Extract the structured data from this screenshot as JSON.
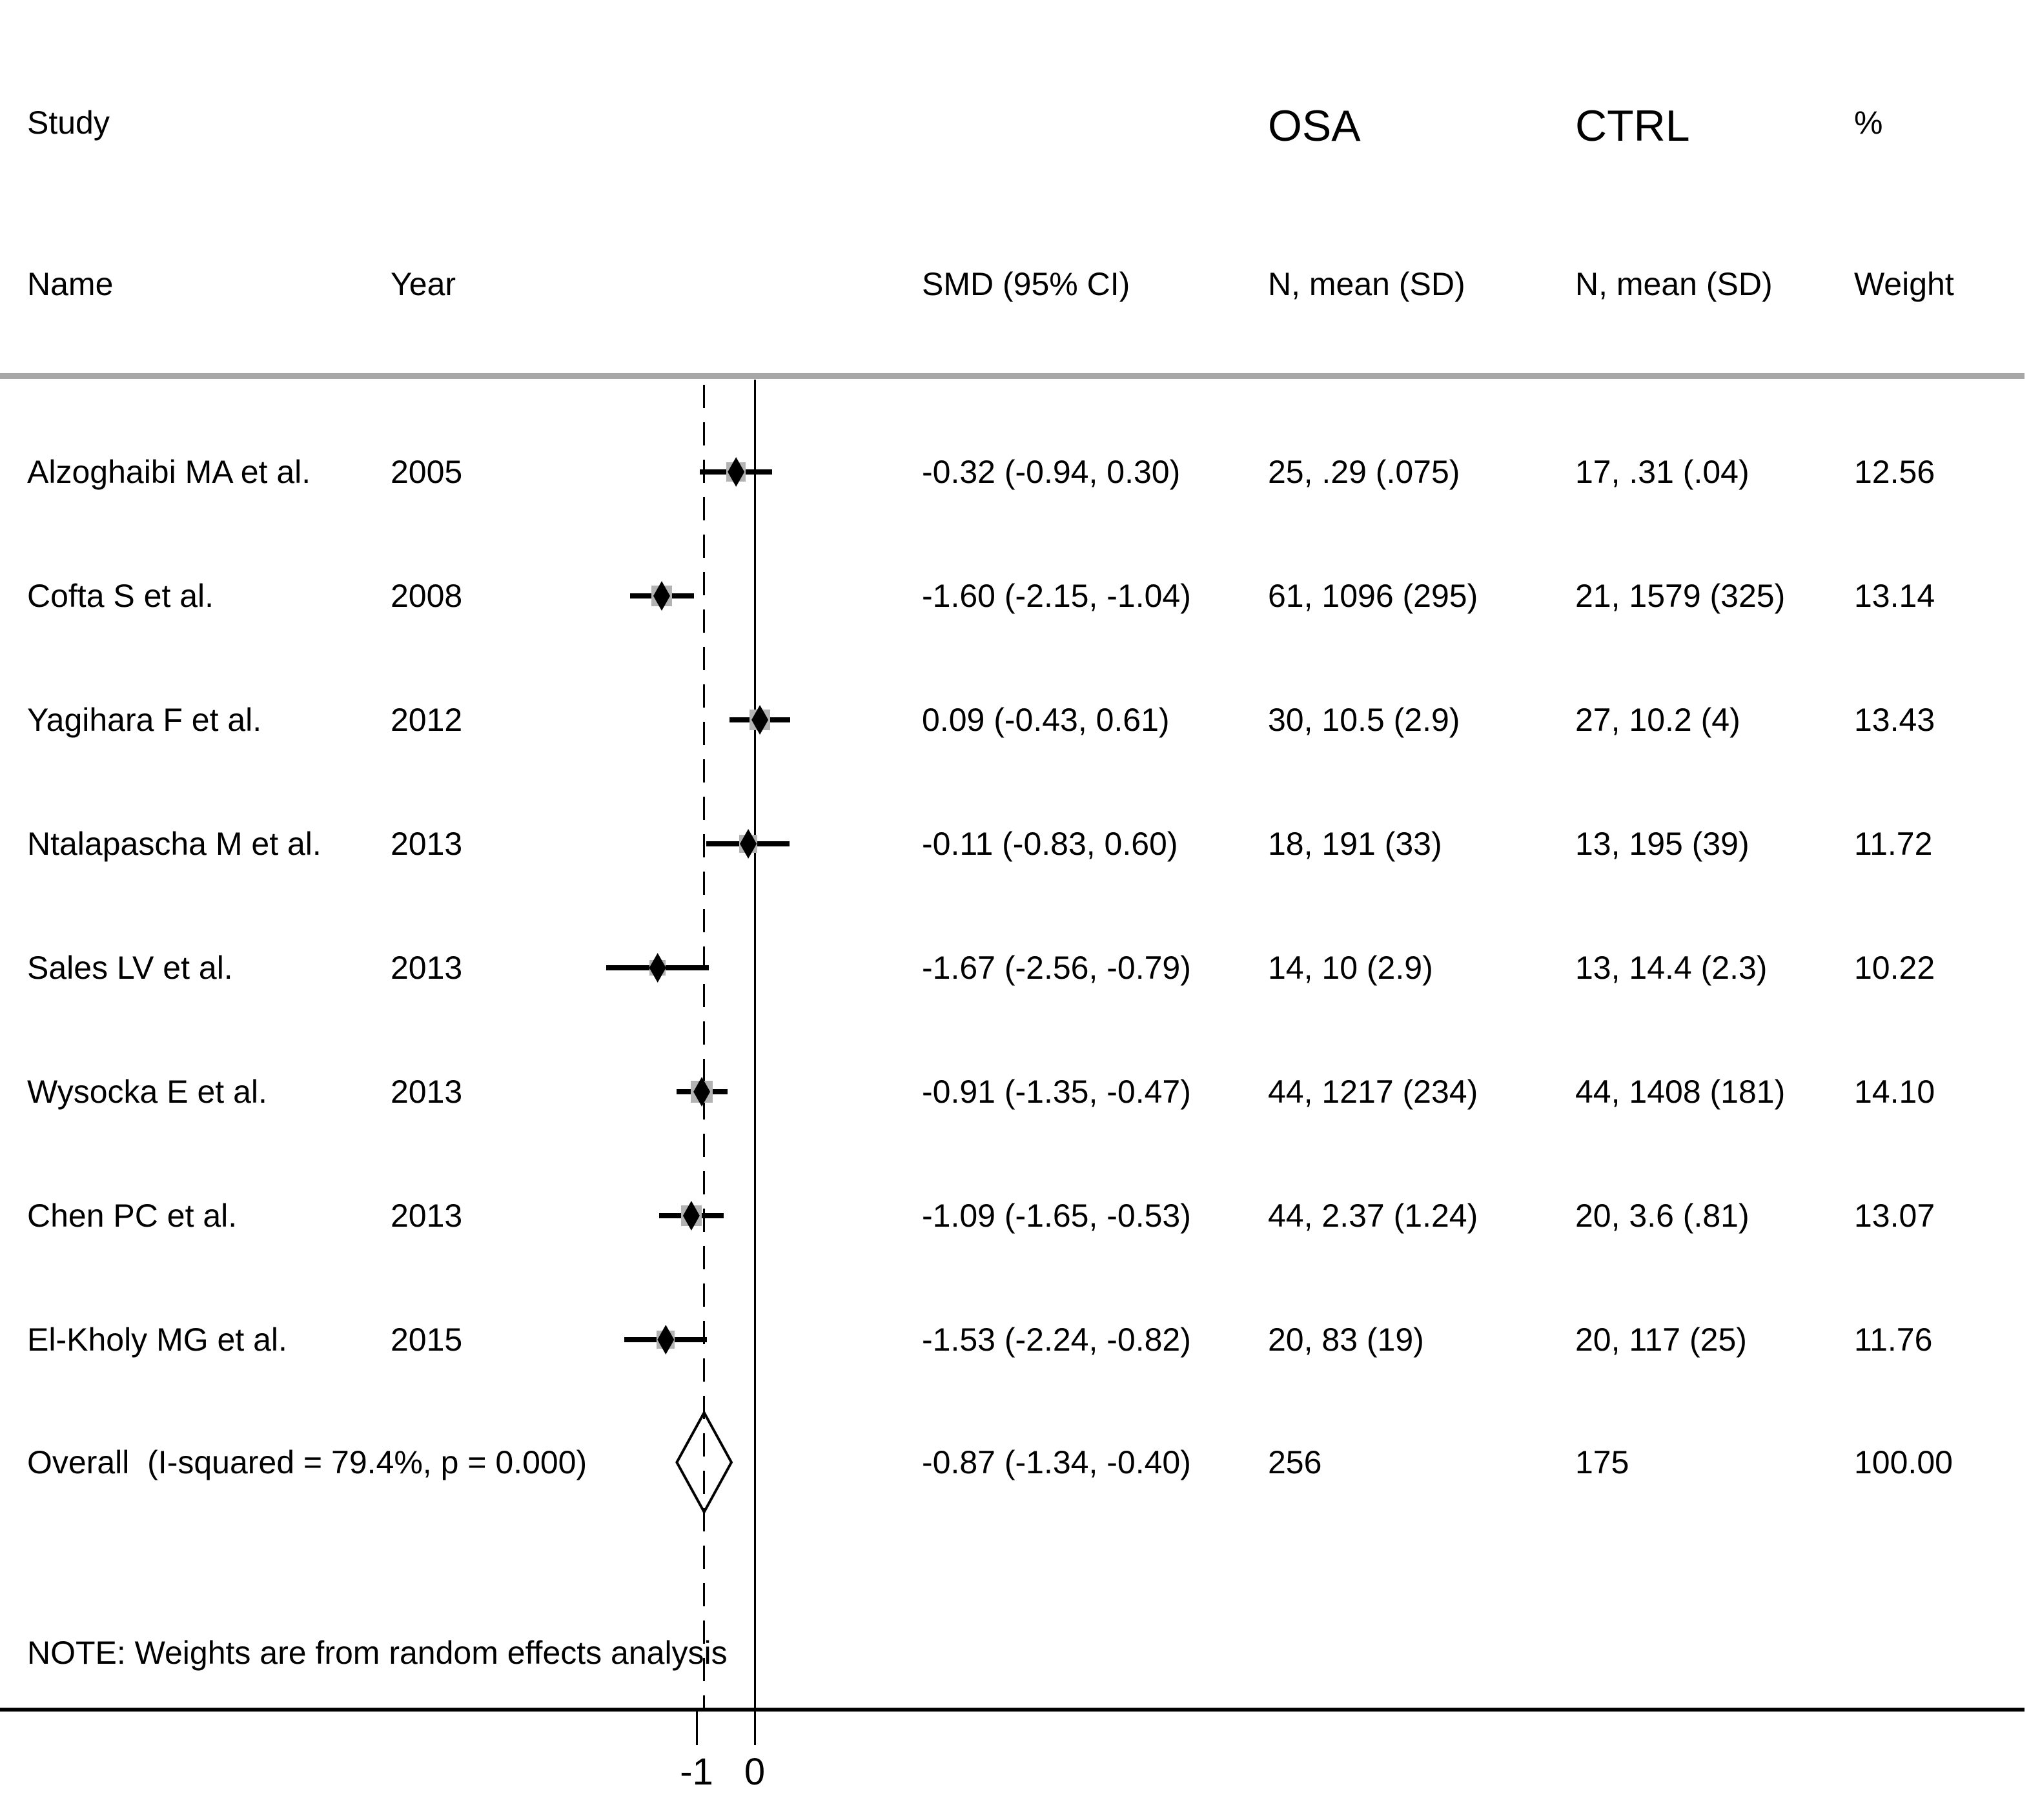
{
  "header": {
    "study_line1": "Study",
    "study_line2": "Name",
    "year": "Year",
    "smd_ci": "SMD (95% CI)",
    "osa_group": "OSA",
    "osa_sub": "N, mean (SD)",
    "ctrl_group": "CTRL",
    "ctrl_sub": "N, mean (SD)",
    "pct": "%",
    "weight": "Weight"
  },
  "chart_data": {
    "type": "forest-plot",
    "effect_measure": "SMD",
    "legend_position": "none",
    "grid": false,
    "xlim": [
      -2.7,
      0.8
    ],
    "studies": [
      {
        "name": "Alzoghaibi MA et al.",
        "year": "2005",
        "smd": -0.32,
        "ci_low": -0.94,
        "ci_high": 0.3,
        "smd_label": "-0.32 (-0.94, 0.30)",
        "osa": "25, .29 (.075)",
        "ctrl": "17, .31 (.04)",
        "weight": 12.56,
        "weight_label": "12.56"
      },
      {
        "name": "Cofta S et al.",
        "year": "2008",
        "smd": -1.6,
        "ci_low": -2.15,
        "ci_high": -1.04,
        "smd_label": "-1.60 (-2.15, -1.04)",
        "osa": "61, 1096 (295)",
        "ctrl": "21, 1579 (325)",
        "weight": 13.14,
        "weight_label": "13.14"
      },
      {
        "name": "Yagihara F et al.",
        "year": "2012",
        "smd": 0.09,
        "ci_low": -0.43,
        "ci_high": 0.61,
        "smd_label": "0.09 (-0.43, 0.61)",
        "osa": "30, 10.5 (2.9)",
        "ctrl": "27, 10.2 (4)",
        "weight": 13.43,
        "weight_label": "13.43"
      },
      {
        "name": "Ntalapascha M et al.",
        "year": "2013",
        "smd": -0.11,
        "ci_low": -0.83,
        "ci_high": 0.6,
        "smd_label": "-0.11 (-0.83, 0.60)",
        "osa": "18, 191 (33)",
        "ctrl": "13, 195 (39)",
        "weight": 11.72,
        "weight_label": "11.72"
      },
      {
        "name": "Sales LV et al.",
        "year": "2013",
        "smd": -1.67,
        "ci_low": -2.56,
        "ci_high": -0.79,
        "smd_label": "-1.67 (-2.56, -0.79)",
        "osa": "14, 10 (2.9)",
        "ctrl": "13, 14.4 (2.3)",
        "weight": 10.22,
        "weight_label": "10.22"
      },
      {
        "name": "Wysocka E et al.",
        "year": "2013",
        "smd": -0.91,
        "ci_low": -1.35,
        "ci_high": -0.47,
        "smd_label": "-0.91 (-1.35, -0.47)",
        "osa": "44, 1217 (234)",
        "ctrl": "44, 1408 (181)",
        "weight": 14.1,
        "weight_label": "14.10"
      },
      {
        "name": "Chen PC et al.",
        "year": "2013",
        "smd": -1.09,
        "ci_low": -1.65,
        "ci_high": -0.53,
        "smd_label": "-1.09 (-1.65, -0.53)",
        "osa": "44, 2.37 (1.24)",
        "ctrl": "20, 3.6 (.81)",
        "weight": 13.07,
        "weight_label": "13.07"
      },
      {
        "name": "El-Kholy MG et al.",
        "year": "2015",
        "smd": -1.53,
        "ci_low": -2.24,
        "ci_high": -0.82,
        "smd_label": "-1.53 (-2.24, -0.82)",
        "osa": "20, 83 (19)",
        "ctrl": "20, 117 (25)",
        "weight": 11.76,
        "weight_label": "11.76"
      }
    ],
    "overall": {
      "label": "Overall  (I-squared = 79.4%, p = 0.000)",
      "smd": -0.87,
      "ci_low": -1.34,
      "ci_high": -0.4,
      "smd_label": "-0.87 (-1.34, -0.40)",
      "osa_total": "256",
      "ctrl_total": "175",
      "weight_label": "100.00"
    },
    "note": "NOTE: Weights are from random effects analysis",
    "axis": {
      "ticks": [
        {
          "label": "-1",
          "value": -1
        },
        {
          "label": "0",
          "value": 0
        }
      ],
      "solid_line_value": 0,
      "dashed_line_value": -0.87
    }
  }
}
